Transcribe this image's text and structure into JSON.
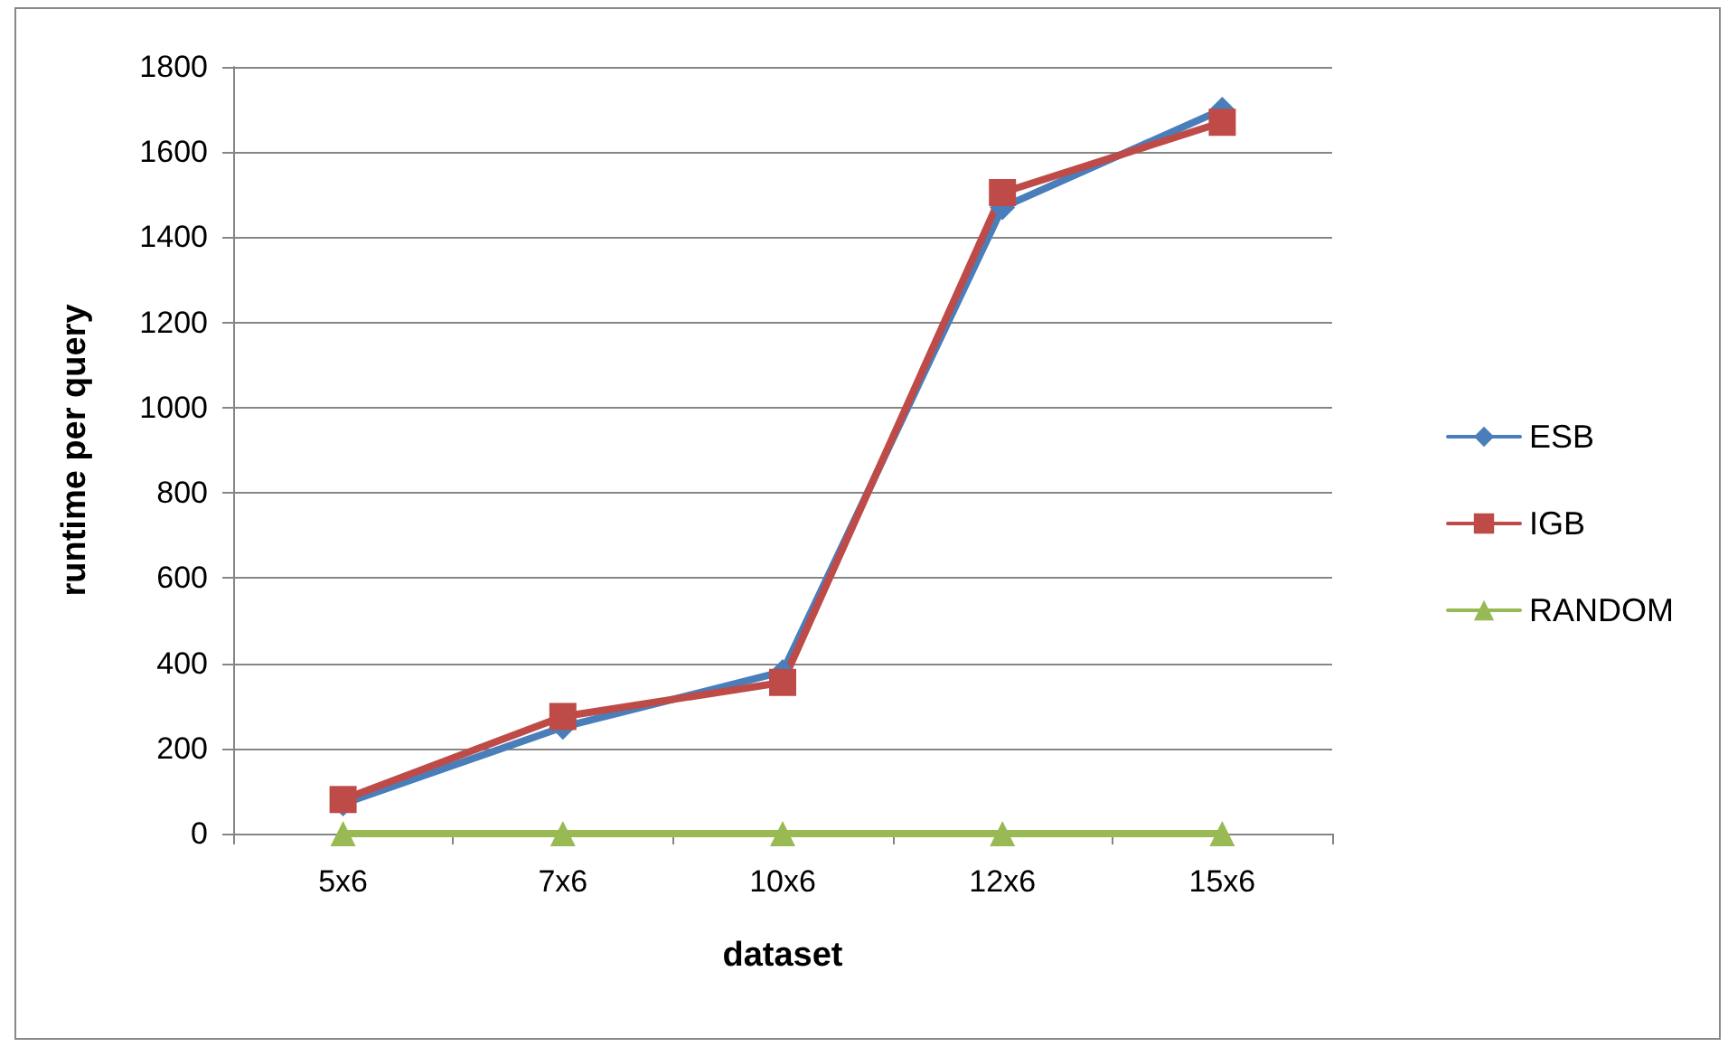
{
  "chart_data": {
    "type": "line",
    "xlabel": "dataset",
    "ylabel": "runtime per query",
    "categories": [
      "5x6",
      "7x6",
      "10x6",
      "12x6",
      "15x6"
    ],
    "series": [
      {
        "name": "ESB",
        "color": "#4a7ebb",
        "marker": "diamond",
        "values": [
          70,
          250,
          380,
          1470,
          1700
        ]
      },
      {
        "name": "IGB",
        "color": "#be4b48",
        "marker": "square",
        "values": [
          80,
          275,
          355,
          1505,
          1670
        ]
      },
      {
        "name": "RANDOM",
        "color": "#98b954",
        "marker": "triangle",
        "values": [
          0,
          0,
          0,
          0,
          0
        ]
      }
    ],
    "ylim": [
      0,
      1800
    ],
    "yticks": [
      0,
      200,
      400,
      600,
      800,
      1000,
      1200,
      1400,
      1600,
      1800
    ],
    "grid": "y",
    "legend": "right"
  }
}
